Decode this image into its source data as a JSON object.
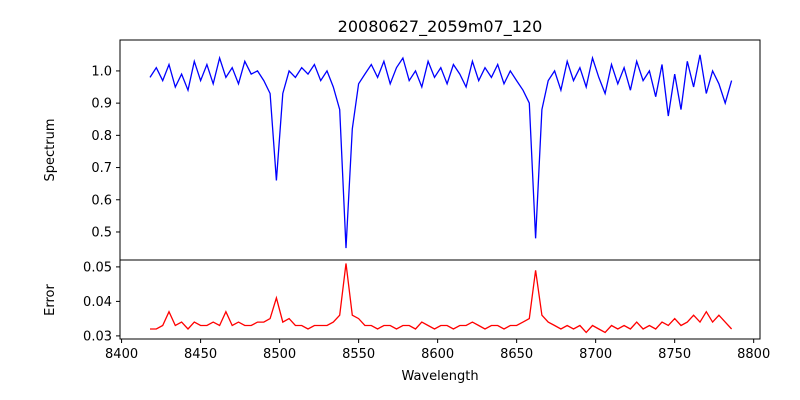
{
  "chart_data": [
    {
      "type": "line",
      "title": "20080627_2059m07_120",
      "ylabel": "Spectrum",
      "xlabel": "",
      "color": "#0000ff",
      "xlim": [
        8399,
        8804
      ],
      "ylim": [
        0.413,
        1.096
      ],
      "yticks": [
        0.5,
        0.6,
        0.7,
        0.8,
        0.9,
        1.0
      ],
      "ytick_labels": [
        "0.5",
        "0.6",
        "0.7",
        "0.8",
        "0.9",
        "1.0"
      ],
      "x_start": 8418,
      "x_step": 4,
      "values": [
        0.98,
        1.01,
        0.97,
        1.02,
        0.95,
        0.99,
        0.94,
        1.03,
        0.97,
        1.02,
        0.96,
        1.04,
        0.98,
        1.01,
        0.96,
        1.03,
        0.99,
        1.0,
        0.97,
        0.93,
        0.66,
        0.93,
        1.0,
        0.98,
        1.01,
        0.99,
        1.02,
        0.97,
        1.0,
        0.95,
        0.88,
        0.45,
        0.82,
        0.96,
        0.99,
        1.02,
        0.98,
        1.03,
        0.96,
        1.01,
        1.04,
        0.97,
        1.0,
        0.95,
        1.03,
        0.98,
        1.01,
        0.96,
        1.02,
        0.99,
        0.95,
        1.03,
        0.97,
        1.01,
        0.98,
        1.02,
        0.96,
        1.0,
        0.97,
        0.94,
        0.9,
        0.48,
        0.88,
        0.97,
        1.0,
        0.94,
        1.03,
        0.97,
        1.01,
        0.95,
        1.04,
        0.98,
        0.93,
        1.02,
        0.96,
        1.01,
        0.94,
        1.03,
        0.97,
        1.0,
        0.92,
        1.02,
        0.86,
        0.99,
        0.88,
        1.03,
        0.95,
        1.05,
        0.93,
        1.0,
        0.96,
        0.9,
        0.97
      ]
    },
    {
      "type": "line",
      "ylabel": "Error",
      "xlabel": "Wavelength",
      "color": "#ff0000",
      "xlim": [
        8399,
        8804
      ],
      "ylim": [
        0.0291,
        0.052
      ],
      "xticks": [
        8400,
        8450,
        8500,
        8550,
        8600,
        8650,
        8700,
        8750,
        8800
      ],
      "xtick_labels": [
        "8400",
        "8450",
        "8500",
        "8550",
        "8600",
        "8650",
        "8700",
        "8750",
        "8800"
      ],
      "yticks": [
        0.03,
        0.04,
        0.05
      ],
      "ytick_labels": [
        "0.03",
        "0.04",
        "0.05"
      ],
      "x_start": 8418,
      "x_step": 4,
      "values": [
        0.032,
        0.032,
        0.033,
        0.037,
        0.033,
        0.034,
        0.032,
        0.034,
        0.033,
        0.033,
        0.034,
        0.033,
        0.037,
        0.033,
        0.034,
        0.033,
        0.033,
        0.034,
        0.034,
        0.035,
        0.041,
        0.034,
        0.035,
        0.033,
        0.033,
        0.032,
        0.033,
        0.033,
        0.033,
        0.034,
        0.036,
        0.051,
        0.036,
        0.035,
        0.033,
        0.033,
        0.032,
        0.033,
        0.033,
        0.032,
        0.033,
        0.033,
        0.032,
        0.034,
        0.033,
        0.032,
        0.033,
        0.033,
        0.032,
        0.033,
        0.033,
        0.034,
        0.033,
        0.032,
        0.033,
        0.033,
        0.032,
        0.033,
        0.033,
        0.034,
        0.035,
        0.049,
        0.036,
        0.034,
        0.033,
        0.032,
        0.033,
        0.032,
        0.033,
        0.031,
        0.033,
        0.032,
        0.031,
        0.033,
        0.032,
        0.033,
        0.032,
        0.034,
        0.032,
        0.033,
        0.032,
        0.034,
        0.033,
        0.035,
        0.033,
        0.034,
        0.036,
        0.034,
        0.037,
        0.034,
        0.036,
        0.034,
        0.032
      ]
    }
  ]
}
